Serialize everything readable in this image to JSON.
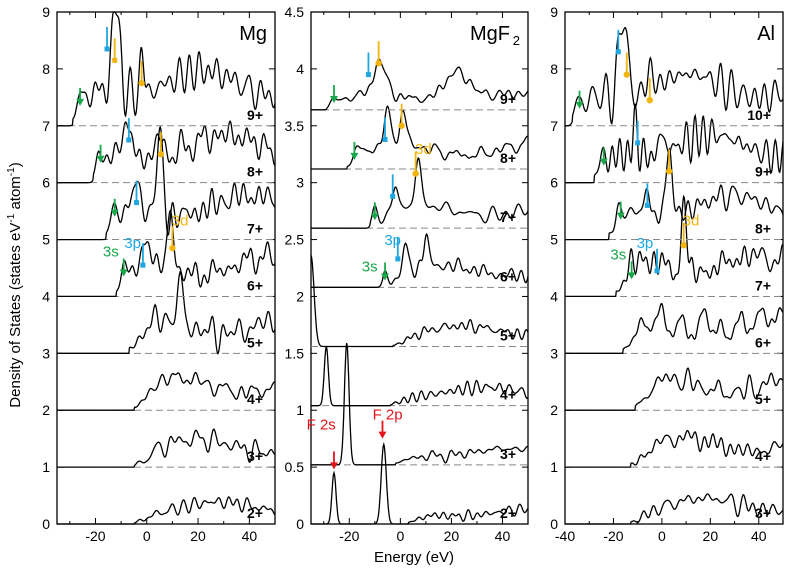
{
  "figure": {
    "xlabel": "Energy (eV)",
    "ylabel": "Density of States (states eV",
    "ylabel_sup1": "-1",
    "ylabel_mid": " atom",
    "ylabel_sup2": "-1",
    "ylabel_end": ")"
  },
  "colors": {
    "green": "#1aa64a",
    "blue": "#1ea7e0",
    "orange": "#f2b50f",
    "red": "#e3141b",
    "line": "#000000",
    "baseline": "#888888"
  },
  "chart_data": [
    {
      "type": "line",
      "title": "Mg",
      "title_sub": "",
      "xlim": [
        -35,
        50
      ],
      "xticks": [
        -20,
        0,
        20,
        40
      ],
      "xtick_labels": [
        "-20",
        "0",
        "20",
        "40"
      ],
      "ylim": [
        0,
        9
      ],
      "yticks": [
        0,
        1,
        2,
        3,
        4,
        5,
        6,
        7,
        8,
        9
      ],
      "ytick_labels": [
        "0",
        "1",
        "2",
        "3",
        "4",
        "5",
        "6",
        "7",
        "8",
        "9"
      ],
      "series": [
        {
          "name": "2+",
          "offset": 0,
          "onset": -5,
          "peaks": [],
          "bg": 0.3,
          "seed": 11
        },
        {
          "name": "3+",
          "offset": 1,
          "onset": -5,
          "peaks": [],
          "bg": 0.38,
          "seed": 12
        },
        {
          "name": "4+",
          "offset": 2,
          "onset": -5,
          "peaks": [],
          "bg": 0.45,
          "seed": 13
        },
        {
          "name": "5+",
          "offset": 3,
          "onset": -7,
          "peaks": [
            [
              13,
              0.7,
              1.2
            ]
          ],
          "bg": 0.5,
          "seed": 14
        },
        {
          "name": "6+",
          "offset": 4,
          "onset": -12,
          "peaks": [
            [
              -9,
              0.35,
              1.0
            ],
            [
              -1,
              0.45,
              1.0
            ],
            [
              9,
              1.05,
              1.1
            ]
          ],
          "bg": 0.55,
          "seed": 15
        },
        {
          "name": "7+",
          "offset": 5,
          "onset": -16,
          "peaks": [
            [
              -13,
              0.4,
              1.0
            ],
            [
              -4,
              0.5,
              1.0
            ],
            [
              5,
              1.55,
              1.0
            ]
          ],
          "bg": 0.6,
          "seed": 16
        },
        {
          "name": "8+",
          "offset": 6,
          "onset": -21,
          "peaks": [
            [
              -19,
              0.35,
              1.0
            ],
            [
              -8,
              0.7,
              1.0
            ],
            [
              5,
              0.45,
              1.0
            ]
          ],
          "bg": 0.65,
          "seed": 17
        },
        {
          "name": "9+",
          "offset": 7,
          "onset": -29,
          "peaks": [
            [
              -26,
              0.3,
              1.2
            ],
            [
              -12,
              1.6,
              1.5
            ],
            [
              -2,
              0.75,
              0.8
            ]
          ],
          "bg": 0.75,
          "seed": 18
        }
      ],
      "annotations": {
        "arrows": [
          {
            "x": -26,
            "y": 7.35,
            "color": "green",
            "kind": "arrow"
          },
          {
            "x": -18,
            "y": 6.35,
            "color": "green",
            "kind": "arrow"
          },
          {
            "x": -12.5,
            "y": 5.4,
            "color": "green",
            "kind": "arrow"
          },
          {
            "x": -9,
            "y": 4.35,
            "color": "green",
            "kind": "arrow"
          },
          {
            "x": -15.5,
            "y": 8.35,
            "color": "blue",
            "kind": "square"
          },
          {
            "x": -7,
            "y": 6.75,
            "color": "blue",
            "kind": "square"
          },
          {
            "x": -4,
            "y": 5.65,
            "color": "blue",
            "kind": "square"
          },
          {
            "x": -1.5,
            "y": 4.55,
            "color": "blue",
            "kind": "square"
          },
          {
            "x": -12.5,
            "y": 8.15,
            "color": "orange",
            "kind": "square"
          },
          {
            "x": -2,
            "y": 7.75,
            "color": "orange",
            "kind": "circle"
          },
          {
            "x": 5.5,
            "y": 6.5,
            "color": "orange",
            "kind": "circle"
          },
          {
            "x": 10,
            "y": 4.85,
            "color": "orange",
            "kind": "circle"
          }
        ],
        "labels": [
          {
            "text": "3s",
            "x": -14,
            "y": 4.7,
            "color": "green"
          },
          {
            "text": "3p",
            "x": -5.5,
            "y": 4.85,
            "color": "blue"
          },
          {
            "text": "3d",
            "x": 13,
            "y": 5.25,
            "color": "orange"
          }
        ]
      }
    },
    {
      "type": "line",
      "title": "MgF",
      "title_sub": "2",
      "xlim": [
        -35,
        50
      ],
      "xticks": [
        -20,
        0,
        20,
        40
      ],
      "xtick_labels": [
        "-20",
        "0",
        "20",
        "40"
      ],
      "ylim": [
        0,
        4.5
      ],
      "yticks": [
        0,
        0.5,
        1,
        1.5,
        2,
        2.5,
        3,
        3.5,
        4,
        4.5
      ],
      "ytick_labels": [
        "0",
        "0.5",
        "1",
        "1.5",
        "2",
        "2.5",
        "3",
        "3.5",
        "4",
        "4.5"
      ],
      "series": [
        {
          "name": "2+",
          "offset": 0,
          "onset": 3,
          "peaks": [
            [
              -26,
              0.45,
              0.8
            ],
            [
              -6.5,
              0.7,
              1.0
            ]
          ],
          "bg": 0.2,
          "seed": 21
        },
        {
          "name": "3+",
          "offset": 0.52,
          "onset": -2,
          "peaks": [
            [
              -21,
              1.07,
              0.9
            ]
          ],
          "bg": 0.22,
          "seed": 22
        },
        {
          "name": "4+",
          "offset": 1.04,
          "onset": -4,
          "peaks": [
            [
              -29,
              0.52,
              0.8
            ]
          ],
          "bg": 0.25,
          "seed": 23
        },
        {
          "name": "5+",
          "offset": 1.56,
          "onset": -3,
          "peaks": [
            [
              -35,
              0.8,
              1.2
            ]
          ],
          "bg": 0.28,
          "seed": 24
        },
        {
          "name": "6+",
          "offset": 2.08,
          "onset": -7,
          "peaks": [
            [
              -6,
              0.12,
              0.9
            ],
            [
              2,
              0.25,
              1.0
            ],
            [
              10,
              0.3,
              0.9
            ]
          ],
          "bg": 0.3,
          "seed": 25
        },
        {
          "name": "7+",
          "offset": 2.6,
          "onset": -12,
          "peaks": [
            [
              -10,
              0.15,
              1.0
            ],
            [
              -2,
              0.2,
              1.0
            ],
            [
              7,
              0.4,
              1.1
            ]
          ],
          "bg": 0.32,
          "seed": 26
        },
        {
          "name": "8+",
          "offset": 3.12,
          "onset": -21,
          "peaks": [
            [
              -17,
              0.15,
              1.2
            ],
            [
              -5,
              0.3,
              1.2
            ],
            [
              1,
              0.3,
              1.2
            ]
          ],
          "bg": 0.35,
          "seed": 27
        },
        {
          "name": "9+",
          "offset": 3.64,
          "onset": -29,
          "peaks": [
            [
              -26,
              0.08,
              1.2
            ],
            [
              -8,
              0.3,
              2.2
            ],
            [
              22,
              0.25,
              5.0
            ]
          ],
          "bg": 0.22,
          "seed": 28
        }
      ],
      "annotations": {
        "arrows": [
          {
            "x": -26,
            "y": 3.7,
            "color": "green",
            "kind": "arrow"
          },
          {
            "x": -18,
            "y": 3.2,
            "color": "green",
            "kind": "arrow"
          },
          {
            "x": -10,
            "y": 2.67,
            "color": "green",
            "kind": "arrow"
          },
          {
            "x": -6,
            "y": 2.14,
            "color": "green",
            "kind": "arrow"
          },
          {
            "x": -12.5,
            "y": 3.95,
            "color": "blue",
            "kind": "square"
          },
          {
            "x": -6,
            "y": 3.38,
            "color": "blue",
            "kind": "square"
          },
          {
            "x": -3,
            "y": 2.88,
            "color": "blue",
            "kind": "square"
          },
          {
            "x": -1,
            "y": 2.33,
            "color": "blue",
            "kind": "square"
          },
          {
            "x": -8.5,
            "y": 4.05,
            "color": "orange",
            "kind": "circle"
          },
          {
            "x": 0.5,
            "y": 3.5,
            "color": "orange",
            "kind": "circle"
          },
          {
            "x": 6,
            "y": 3.08,
            "color": "orange",
            "kind": "circle"
          },
          {
            "x": -26,
            "y": 0.48,
            "color": "red",
            "kind": "arrow"
          },
          {
            "x": -7,
            "y": 0.75,
            "color": "red",
            "kind": "arrow"
          }
        ],
        "labels": [
          {
            "text": "3s",
            "x": -12,
            "y": 2.22,
            "color": "green"
          },
          {
            "text": "3p",
            "x": -3,
            "y": 2.45,
            "color": "blue"
          },
          {
            "text": "3d",
            "x": 9,
            "y": 3.25,
            "color": "orange"
          },
          {
            "text": "F 2s",
            "x": -31,
            "y": 0.83,
            "color": "red"
          },
          {
            "text": "F 2p",
            "x": -5,
            "y": 0.92,
            "color": "red"
          }
        ]
      }
    },
    {
      "type": "line",
      "title": "Al",
      "title_sub": "",
      "xlim": [
        -40,
        50
      ],
      "xticks": [
        -40,
        -20,
        0,
        20,
        40
      ],
      "xtick_labels": [
        "-40",
        "-20",
        "0",
        "20",
        "40"
      ],
      "ylim": [
        0,
        9
      ],
      "yticks": [
        0,
        1,
        2,
        3,
        4,
        5,
        6,
        7,
        8,
        9
      ],
      "ytick_labels": [
        "0",
        "1",
        "2",
        "3",
        "4",
        "5",
        "6",
        "7",
        "8",
        "9"
      ],
      "series": [
        {
          "name": "3+",
          "offset": 0,
          "onset": -13,
          "peaks": [],
          "bg": 0.35,
          "seed": 31
        },
        {
          "name": "4+",
          "offset": 1,
          "onset": -13,
          "peaks": [],
          "bg": 0.4,
          "seed": 32
        },
        {
          "name": "5+",
          "offset": 2,
          "onset": -11,
          "peaks": [],
          "bg": 0.45,
          "seed": 33
        },
        {
          "name": "6+",
          "offset": 3,
          "onset": -16,
          "peaks": [
            [
              18,
              0.4,
              1.5
            ]
          ],
          "bg": 0.5,
          "seed": 34
        },
        {
          "name": "7+",
          "offset": 4,
          "onset": -19,
          "peaks": [
            [
              -13,
              0.3,
              1.0
            ],
            [
              -3,
              0.35,
              1.0
            ],
            [
              9,
              1.15,
              1.3
            ]
          ],
          "bg": 0.55,
          "seed": 35
        },
        {
          "name": "8+",
          "offset": 5,
          "onset": -22,
          "peaks": [
            [
              -18,
              0.3,
              1.0
            ],
            [
              -6,
              0.4,
              1.0
            ],
            [
              3,
              1.3,
              1.1
            ]
          ],
          "bg": 0.6,
          "seed": 36
        },
        {
          "name": "9+",
          "offset": 6,
          "onset": -28,
          "peaks": [
            [
              -25,
              0.3,
              1.0
            ],
            [
              -11,
              0.6,
              1.0
            ],
            [
              0,
              0.4,
              1.0
            ]
          ],
          "bg": 0.65,
          "seed": 37
        },
        {
          "name": "10+",
          "offset": 7,
          "onset": -37,
          "peaks": [
            [
              -35,
              0.3,
              1.2
            ],
            [
              -16,
              1.55,
              1.6
            ],
            [
              -5,
              0.4,
              1.0
            ]
          ],
          "bg": 0.7,
          "seed": 38
        }
      ],
      "annotations": {
        "arrows": [
          {
            "x": -34,
            "y": 7.3,
            "color": "green",
            "kind": "arrow"
          },
          {
            "x": -24,
            "y": 6.3,
            "color": "green",
            "kind": "arrow"
          },
          {
            "x": -17,
            "y": 5.35,
            "color": "green",
            "kind": "arrow"
          },
          {
            "x": -12.5,
            "y": 4.3,
            "color": "green",
            "kind": "arrow"
          },
          {
            "x": -18,
            "y": 8.3,
            "color": "blue",
            "kind": "square"
          },
          {
            "x": -10,
            "y": 6.7,
            "color": "blue",
            "kind": "square"
          },
          {
            "x": -6,
            "y": 5.6,
            "color": "blue",
            "kind": "square"
          },
          {
            "x": -2,
            "y": 4.45,
            "color": "blue",
            "kind": "square"
          },
          {
            "x": -14.5,
            "y": 7.9,
            "color": "orange",
            "kind": "circle"
          },
          {
            "x": -5,
            "y": 7.45,
            "color": "orange",
            "kind": "circle"
          },
          {
            "x": 3,
            "y": 6.2,
            "color": "orange",
            "kind": "circle"
          },
          {
            "x": 9,
            "y": 4.9,
            "color": "orange",
            "kind": "circle"
          }
        ],
        "labels": [
          {
            "text": "3s",
            "x": -18,
            "y": 4.65,
            "color": "green"
          },
          {
            "text": "3p",
            "x": -7,
            "y": 4.85,
            "color": "blue"
          },
          {
            "text": "3d",
            "x": 12,
            "y": 5.25,
            "color": "orange"
          }
        ]
      }
    }
  ]
}
